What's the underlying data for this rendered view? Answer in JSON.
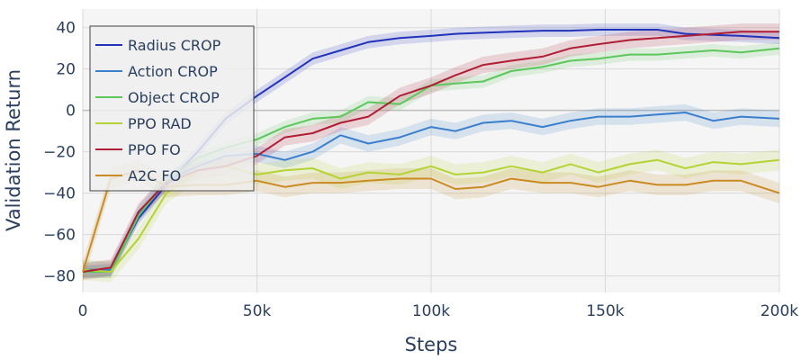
{
  "chart_data": {
    "type": "line",
    "title": "",
    "xlabel": "Steps",
    "ylabel": "Validation Return",
    "xlim": [
      0,
      200000
    ],
    "ylim": [
      -88,
      49
    ],
    "x_ticks": [
      0,
      50000,
      100000,
      150000,
      200000
    ],
    "x_tick_labels": [
      "0",
      "50k",
      "100k",
      "150k",
      "200k"
    ],
    "y_ticks": [
      40,
      20,
      0,
      -20,
      -40,
      -60,
      -80
    ],
    "y_tick_labels": [
      "40",
      "20",
      "0",
      "−20",
      "−40",
      "−60",
      "−80"
    ],
    "grid": true,
    "legend_position": "top-left",
    "x": [
      0,
      8000,
      16000,
      24000,
      33000,
      41000,
      50000,
      58000,
      66000,
      74000,
      82000,
      91000,
      100000,
      107000,
      115000,
      123000,
      132000,
      140000,
      148000,
      157000,
      165000,
      173000,
      181000,
      189000,
      200000
    ],
    "series": [
      {
        "name": "Radius CROP",
        "color": "#2233bb",
        "values": [
          -78,
          -77,
          -52,
          -36,
          -20,
          -4,
          7,
          16,
          25,
          29,
          33,
          35,
          36,
          37,
          37.5,
          38,
          38.5,
          38.5,
          39,
          39,
          39,
          37,
          36.5,
          36,
          35
        ],
        "band": 3
      },
      {
        "name": "Action CROP",
        "color": "#3a7fcc",
        "values": [
          -77,
          -77,
          -50,
          -34,
          -27,
          -22,
          -21,
          -24,
          -20,
          -12,
          -16,
          -13,
          -8,
          -10,
          -6,
          -5,
          -8,
          -5,
          -3,
          -3,
          -2,
          -1,
          -5,
          -3,
          -4
        ],
        "band": 4
      },
      {
        "name": "Object CROP",
        "color": "#5cc85c",
        "values": [
          -78,
          -78,
          -51,
          -34,
          -23,
          -18,
          -14,
          -8,
          -4,
          -3,
          4,
          3,
          12,
          13,
          14,
          19,
          21,
          24,
          25,
          27,
          27,
          28,
          29,
          28,
          30
        ],
        "band": 3
      },
      {
        "name": "PPO RAD",
        "color": "#b5d334",
        "values": [
          -77,
          -78,
          -62,
          -40,
          -29,
          -27,
          -31,
          -29,
          -28,
          -33,
          -30,
          -31,
          -27,
          -31,
          -30,
          -27,
          -30,
          -26,
          -30,
          -26,
          -24,
          -28,
          -25,
          -26,
          -24
        ],
        "band": 5
      },
      {
        "name": "PPO FO",
        "color": "#b01e35",
        "values": [
          -78,
          -76,
          -49,
          -35,
          -29,
          -27,
          -22,
          -13,
          -11,
          -6,
          -3,
          7,
          12,
          17,
          22,
          24,
          26,
          30,
          32,
          34,
          35,
          36,
          37,
          38,
          38
        ],
        "band": 4
      },
      {
        "name": "A2C FO",
        "color": "#c98b22",
        "values": [
          -78,
          -33,
          -29,
          -37,
          -36,
          -36,
          -34,
          -37,
          -35,
          -35,
          -34,
          -33,
          -33,
          -38,
          -37,
          -33,
          -35,
          -35,
          -37,
          -34,
          -36,
          -36,
          -34,
          -34,
          -40
        ],
        "band": 5
      }
    ]
  }
}
